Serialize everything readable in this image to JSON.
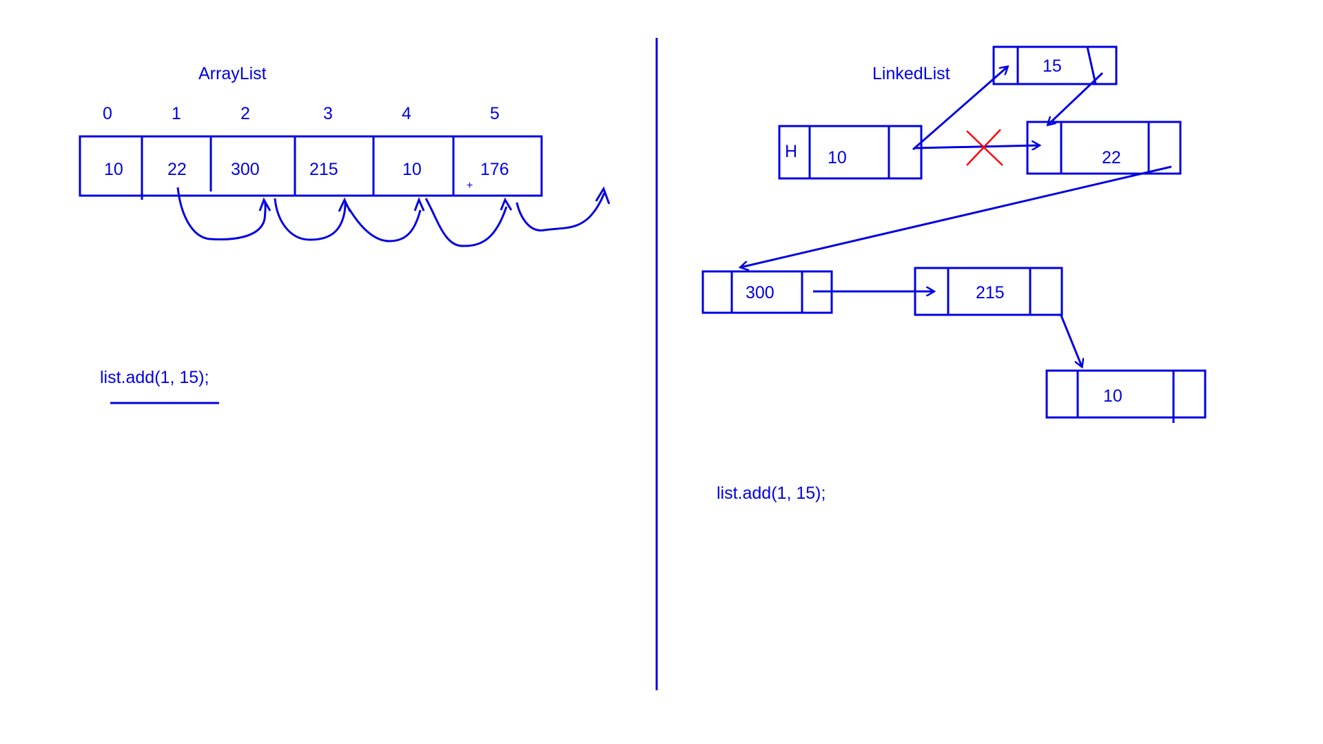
{
  "arraylist": {
    "title": "ArrayList",
    "indices": [
      "0",
      "1",
      "2",
      "3",
      "4",
      "5"
    ],
    "values": [
      "10",
      "22",
      "300",
      "215",
      "10",
      "176"
    ],
    "plus_mark": "+",
    "code": "list.add(1, 15);"
  },
  "linkedlist": {
    "title": "LinkedList",
    "head_label": "H",
    "head_value": "10",
    "new_node_value": "15",
    "node_values": [
      "22",
      "300",
      "215",
      "10"
    ],
    "code": "list.add(1, 15);"
  },
  "colors": {
    "ink": "#0000e0",
    "cross": "#ff0000"
  }
}
